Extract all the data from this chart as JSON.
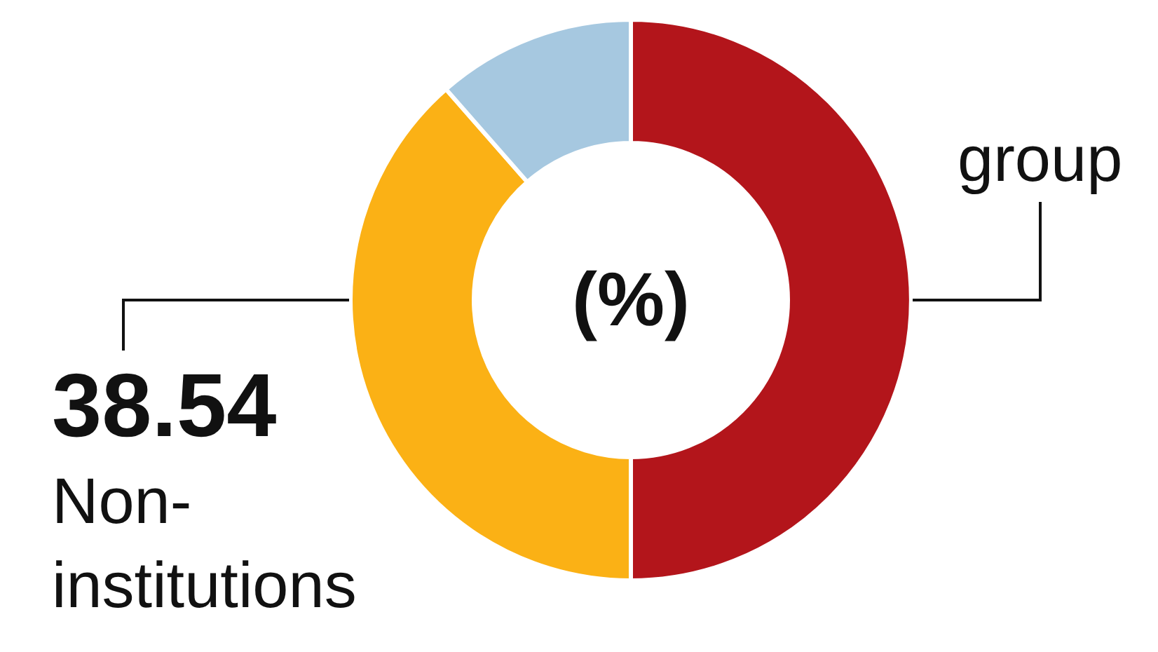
{
  "chart_data": {
    "type": "donut",
    "categories": [
      "group",
      "Non-institutions",
      null
    ],
    "values": [
      50,
      38.54,
      11.46
    ],
    "colors": [
      "#b3151b",
      "#fbb115",
      "#a6c8e0"
    ],
    "value_labels": [
      null,
      "38.54",
      null
    ],
    "annotations": [
      "(%)"
    ]
  }
}
